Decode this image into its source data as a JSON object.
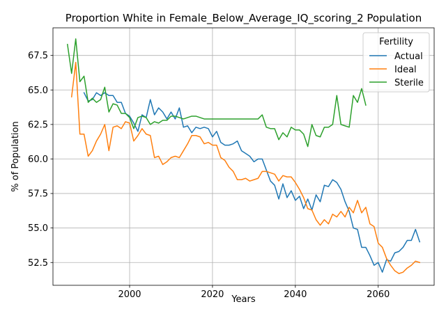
{
  "chart_data": {
    "type": "line",
    "title": "Proportion White in Female_Below_Average_IQ_scoring_2 Population",
    "xlabel": "Years",
    "ylabel": "% of Population",
    "xlim": [
      1981.5,
      2073.5
    ],
    "ylim": [
      50.85,
      69.5
    ],
    "xticks": [
      2000,
      2020,
      2040,
      2060
    ],
    "yticks": [
      52.5,
      55.0,
      57.5,
      60.0,
      62.5,
      65.0,
      67.5
    ],
    "ytick_labels": [
      "52.5",
      "55.0",
      "57.5",
      "60.0",
      "62.5",
      "65.0",
      "67.5"
    ],
    "grid": true,
    "legend": {
      "title": "Fertility",
      "position": "top-right"
    },
    "series": [
      {
        "name": "Actual",
        "color": "#1f77b4",
        "x": [
          1989,
          1990,
          1991,
          1992,
          1993,
          1994,
          1995,
          1996,
          1997,
          1998,
          1999,
          2000,
          2001,
          2002,
          2003,
          2004,
          2005,
          2006,
          2007,
          2008,
          2009,
          2010,
          2011,
          2012,
          2013,
          2014,
          2015,
          2016,
          2017,
          2018,
          2019,
          2020,
          2021,
          2022,
          2023,
          2024,
          2025,
          2026,
          2027,
          2028,
          2029,
          2030,
          2031,
          2032,
          2033,
          2034,
          2035,
          2036,
          2037,
          2038,
          2039,
          2040,
          2041,
          2042,
          2043,
          2044,
          2045,
          2046,
          2047,
          2048,
          2049,
          2050,
          2051,
          2052,
          2053,
          2054,
          2055,
          2056,
          2057,
          2058,
          2059,
          2060,
          2061,
          2062,
          2063,
          2064,
          2065,
          2066,
          2067,
          2068,
          2069,
          2070
        ],
        "values": [
          64.8,
          64.2,
          64.3,
          64.8,
          64.6,
          64.8,
          64.6,
          64.6,
          64.1,
          64.1,
          63.3,
          63.1,
          62.6,
          62.0,
          63.2,
          63.0,
          64.3,
          63.2,
          63.7,
          63.4,
          62.9,
          63.4,
          62.9,
          63.7,
          62.3,
          62.4,
          61.9,
          62.3,
          62.2,
          62.3,
          62.2,
          61.6,
          62.0,
          61.2,
          61.0,
          61.0,
          61.1,
          61.3,
          60.6,
          60.4,
          60.2,
          59.8,
          60.0,
          60.0,
          59.2,
          58.4,
          58.1,
          57.1,
          58.2,
          57.2,
          57.7,
          57.0,
          57.3,
          56.4,
          57.1,
          56.3,
          57.4,
          56.9,
          58.1,
          58.0,
          58.5,
          58.3,
          57.8,
          56.9,
          56.2,
          55.0,
          54.9,
          53.6,
          53.6,
          53.0,
          52.3,
          52.5,
          51.8,
          52.7,
          52.6,
          53.2,
          53.3,
          53.6,
          54.1,
          54.1,
          54.9,
          54.0
        ]
      },
      {
        "name": "Ideal",
        "color": "#ff7f0e",
        "x": [
          1986,
          1987,
          1988,
          1989,
          1990,
          1991,
          1992,
          1993,
          1994,
          1995,
          1996,
          1997,
          1998,
          1999,
          2000,
          2001,
          2002,
          2003,
          2004,
          2005,
          2006,
          2007,
          2008,
          2009,
          2010,
          2011,
          2012,
          2013,
          2014,
          2015,
          2016,
          2017,
          2018,
          2019,
          2020,
          2021,
          2022,
          2023,
          2024,
          2025,
          2026,
          2027,
          2028,
          2029,
          2030,
          2031,
          2032,
          2033,
          2034,
          2035,
          2036,
          2037,
          2038,
          2039,
          2040,
          2041,
          2042,
          2043,
          2044,
          2045,
          2046,
          2047,
          2048,
          2049,
          2050,
          2051,
          2052,
          2053,
          2054,
          2055,
          2056,
          2057,
          2058,
          2059,
          2060,
          2061,
          2062,
          2063,
          2064,
          2065,
          2066,
          2067,
          2068,
          2069,
          2070
        ],
        "values": [
          64.5,
          67.0,
          61.8,
          61.8,
          60.2,
          60.6,
          61.3,
          61.8,
          62.5,
          60.6,
          62.3,
          62.4,
          62.2,
          62.7,
          62.6,
          61.3,
          61.7,
          62.2,
          61.8,
          61.7,
          60.1,
          60.2,
          59.6,
          59.8,
          60.1,
          60.2,
          60.1,
          60.6,
          61.1,
          61.7,
          61.7,
          61.6,
          61.1,
          61.2,
          61.0,
          61.0,
          60.1,
          59.9,
          59.4,
          59.1,
          58.5,
          58.5,
          58.6,
          58.4,
          58.5,
          58.6,
          59.1,
          59.1,
          59.0,
          58.9,
          58.4,
          58.8,
          58.7,
          58.7,
          58.3,
          57.8,
          57.2,
          56.4,
          56.3,
          55.6,
          55.2,
          55.6,
          55.3,
          56.0,
          55.8,
          56.2,
          55.8,
          56.5,
          56.1,
          57.0,
          56.1,
          56.5,
          55.3,
          55.1,
          53.9,
          53.6,
          52.8,
          52.3,
          51.9,
          51.7,
          51.8,
          52.1,
          52.3,
          52.6,
          52.5
        ]
      },
      {
        "name": "Sterile",
        "color": "#2ca02c",
        "x": [
          1985,
          1986,
          1987,
          1988,
          1989,
          1990,
          1991,
          1992,
          1993,
          1994,
          1995,
          1996,
          1997,
          1998,
          1999,
          2000,
          2001,
          2002,
          2003,
          2004,
          2005,
          2006,
          2007,
          2008,
          2009,
          2010,
          2011,
          2012,
          2013,
          2014,
          2015,
          2016,
          2017,
          2018,
          2019,
          2020,
          2021,
          2022,
          2023,
          2024,
          2025,
          2026,
          2027,
          2028,
          2029,
          2030,
          2031,
          2032,
          2033,
          2034,
          2035,
          2036,
          2037,
          2038,
          2039,
          2040,
          2041,
          2042,
          2043,
          2044,
          2045,
          2046,
          2047,
          2048,
          2049,
          2050,
          2051,
          2052,
          2053,
          2054,
          2055,
          2056,
          2057
        ],
        "values": [
          68.3,
          66.2,
          68.7,
          65.6,
          66.0,
          64.1,
          64.4,
          64.1,
          64.3,
          65.2,
          63.4,
          64.0,
          63.9,
          63.3,
          63.3,
          63.0,
          62.2,
          63.0,
          63.1,
          63.0,
          62.5,
          62.7,
          62.6,
          62.8,
          62.8,
          63.1,
          63.1,
          63.0,
          62.9,
          63.0,
          63.1,
          63.1,
          63.0,
          62.9,
          62.9,
          62.9,
          62.9,
          62.9,
          62.9,
          62.9,
          62.9,
          62.9,
          62.9,
          62.9,
          62.9,
          62.9,
          62.9,
          63.2,
          62.3,
          62.2,
          62.2,
          61.4,
          61.9,
          61.6,
          62.3,
          62.1,
          62.1,
          61.8,
          60.9,
          62.5,
          61.7,
          61.6,
          62.3,
          62.3,
          62.5,
          64.6,
          62.5,
          62.4,
          62.3,
          64.6,
          64.1,
          65.1,
          63.9
        ]
      }
    ]
  }
}
